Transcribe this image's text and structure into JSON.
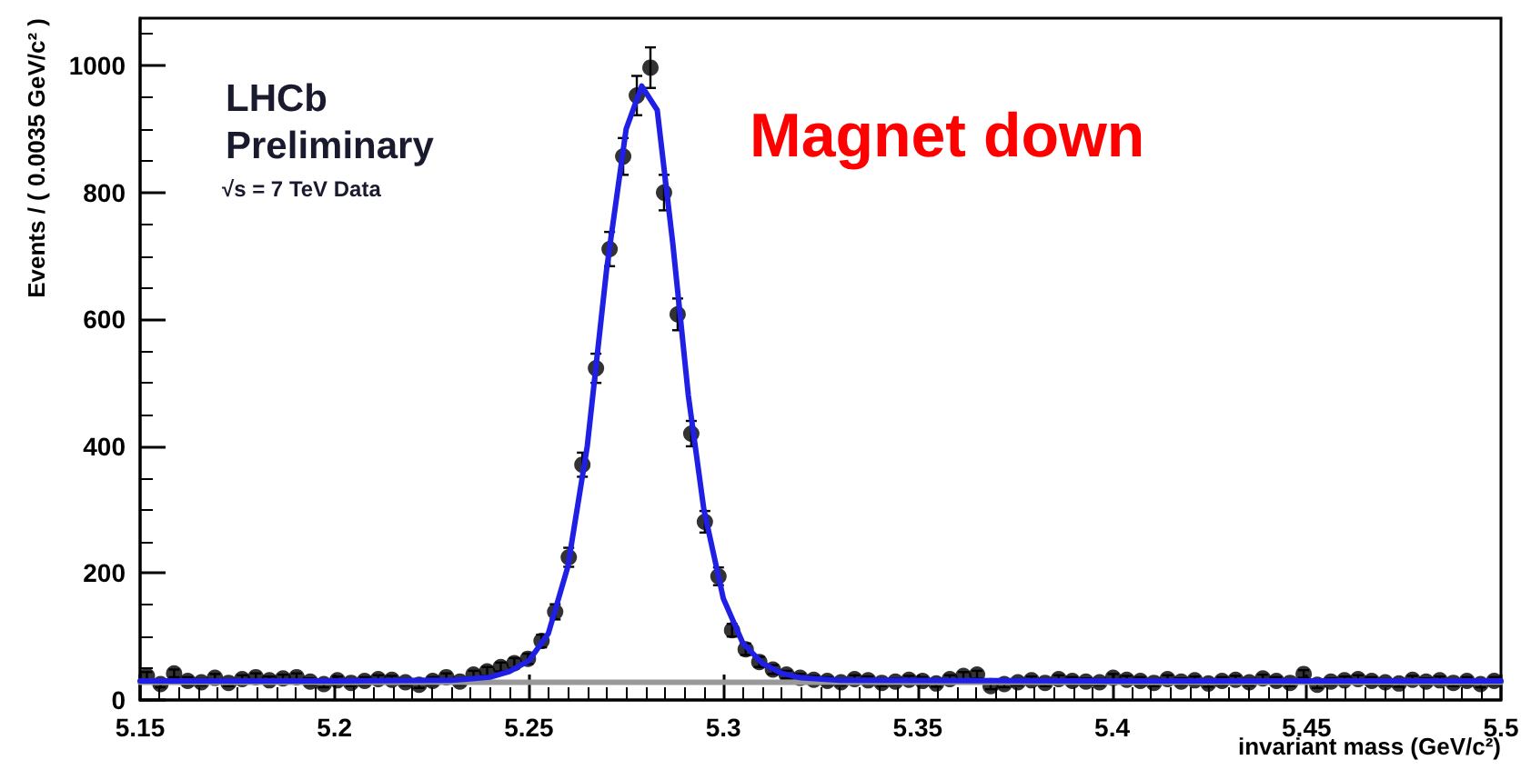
{
  "chart_data": {
    "type": "scatter",
    "xlabel": "invariant mass (GeV/c²)",
    "ylabel": "Events / ( 0.0035 GeV/c² )",
    "annotations": [
      "LHCb",
      "Preliminary",
      "√s = 7 TeV Data",
      "Magnet down"
    ],
    "x": [
      5.15175,
      5.15525,
      5.15875,
      5.16225,
      5.16575,
      5.16925,
      5.17275,
      5.17625,
      5.17975,
      5.18325,
      5.18675,
      5.19025,
      5.19375,
      5.19725,
      5.20075,
      5.20425,
      5.20775,
      5.21125,
      5.21475,
      5.21825,
      5.22175,
      5.22525,
      5.22875,
      5.23225,
      5.23575,
      5.23925,
      5.24275,
      5.24625,
      5.24975,
      5.25325,
      5.25675,
      5.26025,
      5.26375,
      5.26725,
      5.27075,
      5.27425,
      5.27775,
      5.28125,
      5.28475,
      5.28825,
      5.29175,
      5.29525,
      5.29875,
      5.30225,
      5.30575,
      5.30925,
      5.31275,
      5.31625,
      5.31975,
      5.32325,
      5.32675,
      5.33025,
      5.33375,
      5.33725,
      5.34075,
      5.34425,
      5.34775,
      5.35125,
      5.35475,
      5.35825,
      5.36175,
      5.36525,
      5.36875,
      5.37225,
      5.37575,
      5.37925,
      5.38275,
      5.38625,
      5.38975,
      5.39325,
      5.39675,
      5.40025,
      5.40375,
      5.40725,
      5.41075,
      5.41425,
      5.41775,
      5.42125,
      5.42475,
      5.42825,
      5.43175,
      5.43525,
      5.43875,
      5.44225,
      5.44575,
      5.44925,
      5.45275,
      5.45625,
      5.45975,
      5.46325,
      5.46675,
      5.47025,
      5.47375,
      5.47725,
      5.48075,
      5.48425,
      5.48775,
      5.49125,
      5.49475,
      5.49825
    ],
    "series": [
      {
        "color": "#000000",
        "marker": "circle",
        "values": [
          38,
          25,
          42,
          30,
          28,
          35,
          27,
          33,
          36,
          31,
          34,
          36,
          29,
          25,
          31,
          27,
          30,
          33,
          32,
          28,
          24,
          30,
          36,
          29,
          40,
          45,
          52,
          58,
          65,
          93,
          139,
          225,
          371,
          523,
          711,
          857,
          953,
          997,
          800,
          608,
          420,
          281,
          195,
          110,
          80,
          60,
          48,
          40,
          35,
          32,
          30,
          28,
          33,
          31,
          27,
          29,
          32,
          30,
          26,
          33,
          38,
          40,
          22,
          25,
          28,
          31,
          27,
          33,
          30,
          29,
          28,
          35,
          32,
          30,
          27,
          33,
          29,
          31,
          26,
          30,
          32,
          28,
          34,
          30,
          27,
          41,
          24,
          29,
          31,
          33,
          30,
          28,
          26,
          32,
          29,
          31,
          27,
          30,
          25,
          30
        ],
        "errors": [
          6,
          5,
          6,
          6,
          5,
          6,
          5,
          6,
          6,
          6,
          6,
          6,
          5,
          5,
          6,
          5,
          6,
          6,
          6,
          5,
          5,
          6,
          6,
          5,
          6,
          7,
          7,
          8,
          8,
          10,
          12,
          15,
          19,
          23,
          27,
          29,
          31,
          32,
          28,
          25,
          20,
          17,
          14,
          10,
          9,
          8,
          7,
          6,
          6,
          6,
          6,
          5,
          6,
          6,
          5,
          5,
          6,
          6,
          5,
          6,
          6,
          6,
          5,
          5,
          5,
          6,
          5,
          6,
          6,
          5,
          5,
          6,
          6,
          6,
          5,
          6,
          5,
          6,
          5,
          6,
          6,
          5,
          6,
          6,
          5,
          6,
          5,
          5,
          6,
          6,
          6,
          5,
          5,
          6,
          5,
          6,
          5,
          6,
          5,
          6
        ]
      },
      {
        "type": "line",
        "color": "#999999",
        "marker": "none",
        "x": [
          5.15,
          5.5
        ],
        "values": [
          28,
          28
        ]
      },
      {
        "type": "line",
        "color": "#1f1fe6",
        "marker": "none",
        "x": [
          5.15,
          5.2,
          5.23,
          5.24,
          5.245,
          5.25,
          5.255,
          5.26,
          5.265,
          5.27,
          5.275,
          5.279,
          5.283,
          5.287,
          5.291,
          5.295,
          5.3,
          5.305,
          5.31,
          5.315,
          5.32,
          5.33,
          5.4,
          5.5
        ],
        "values": [
          30,
          30,
          31,
          36,
          45,
          62,
          105,
          210,
          400,
          680,
          900,
          968,
          930,
          720,
          480,
          300,
          160,
          90,
          58,
          42,
          35,
          31,
          30,
          30
        ]
      }
    ],
    "xlim": [
      5.15,
      5.5
    ],
    "xticks": [
      5.15,
      5.2,
      5.25,
      5.3,
      5.35,
      5.4,
      5.45,
      5.5
    ],
    "ylim": [
      0,
      1075
    ],
    "yticks": [
      0,
      200,
      400,
      600,
      800,
      1000
    ],
    "grid": false
  }
}
